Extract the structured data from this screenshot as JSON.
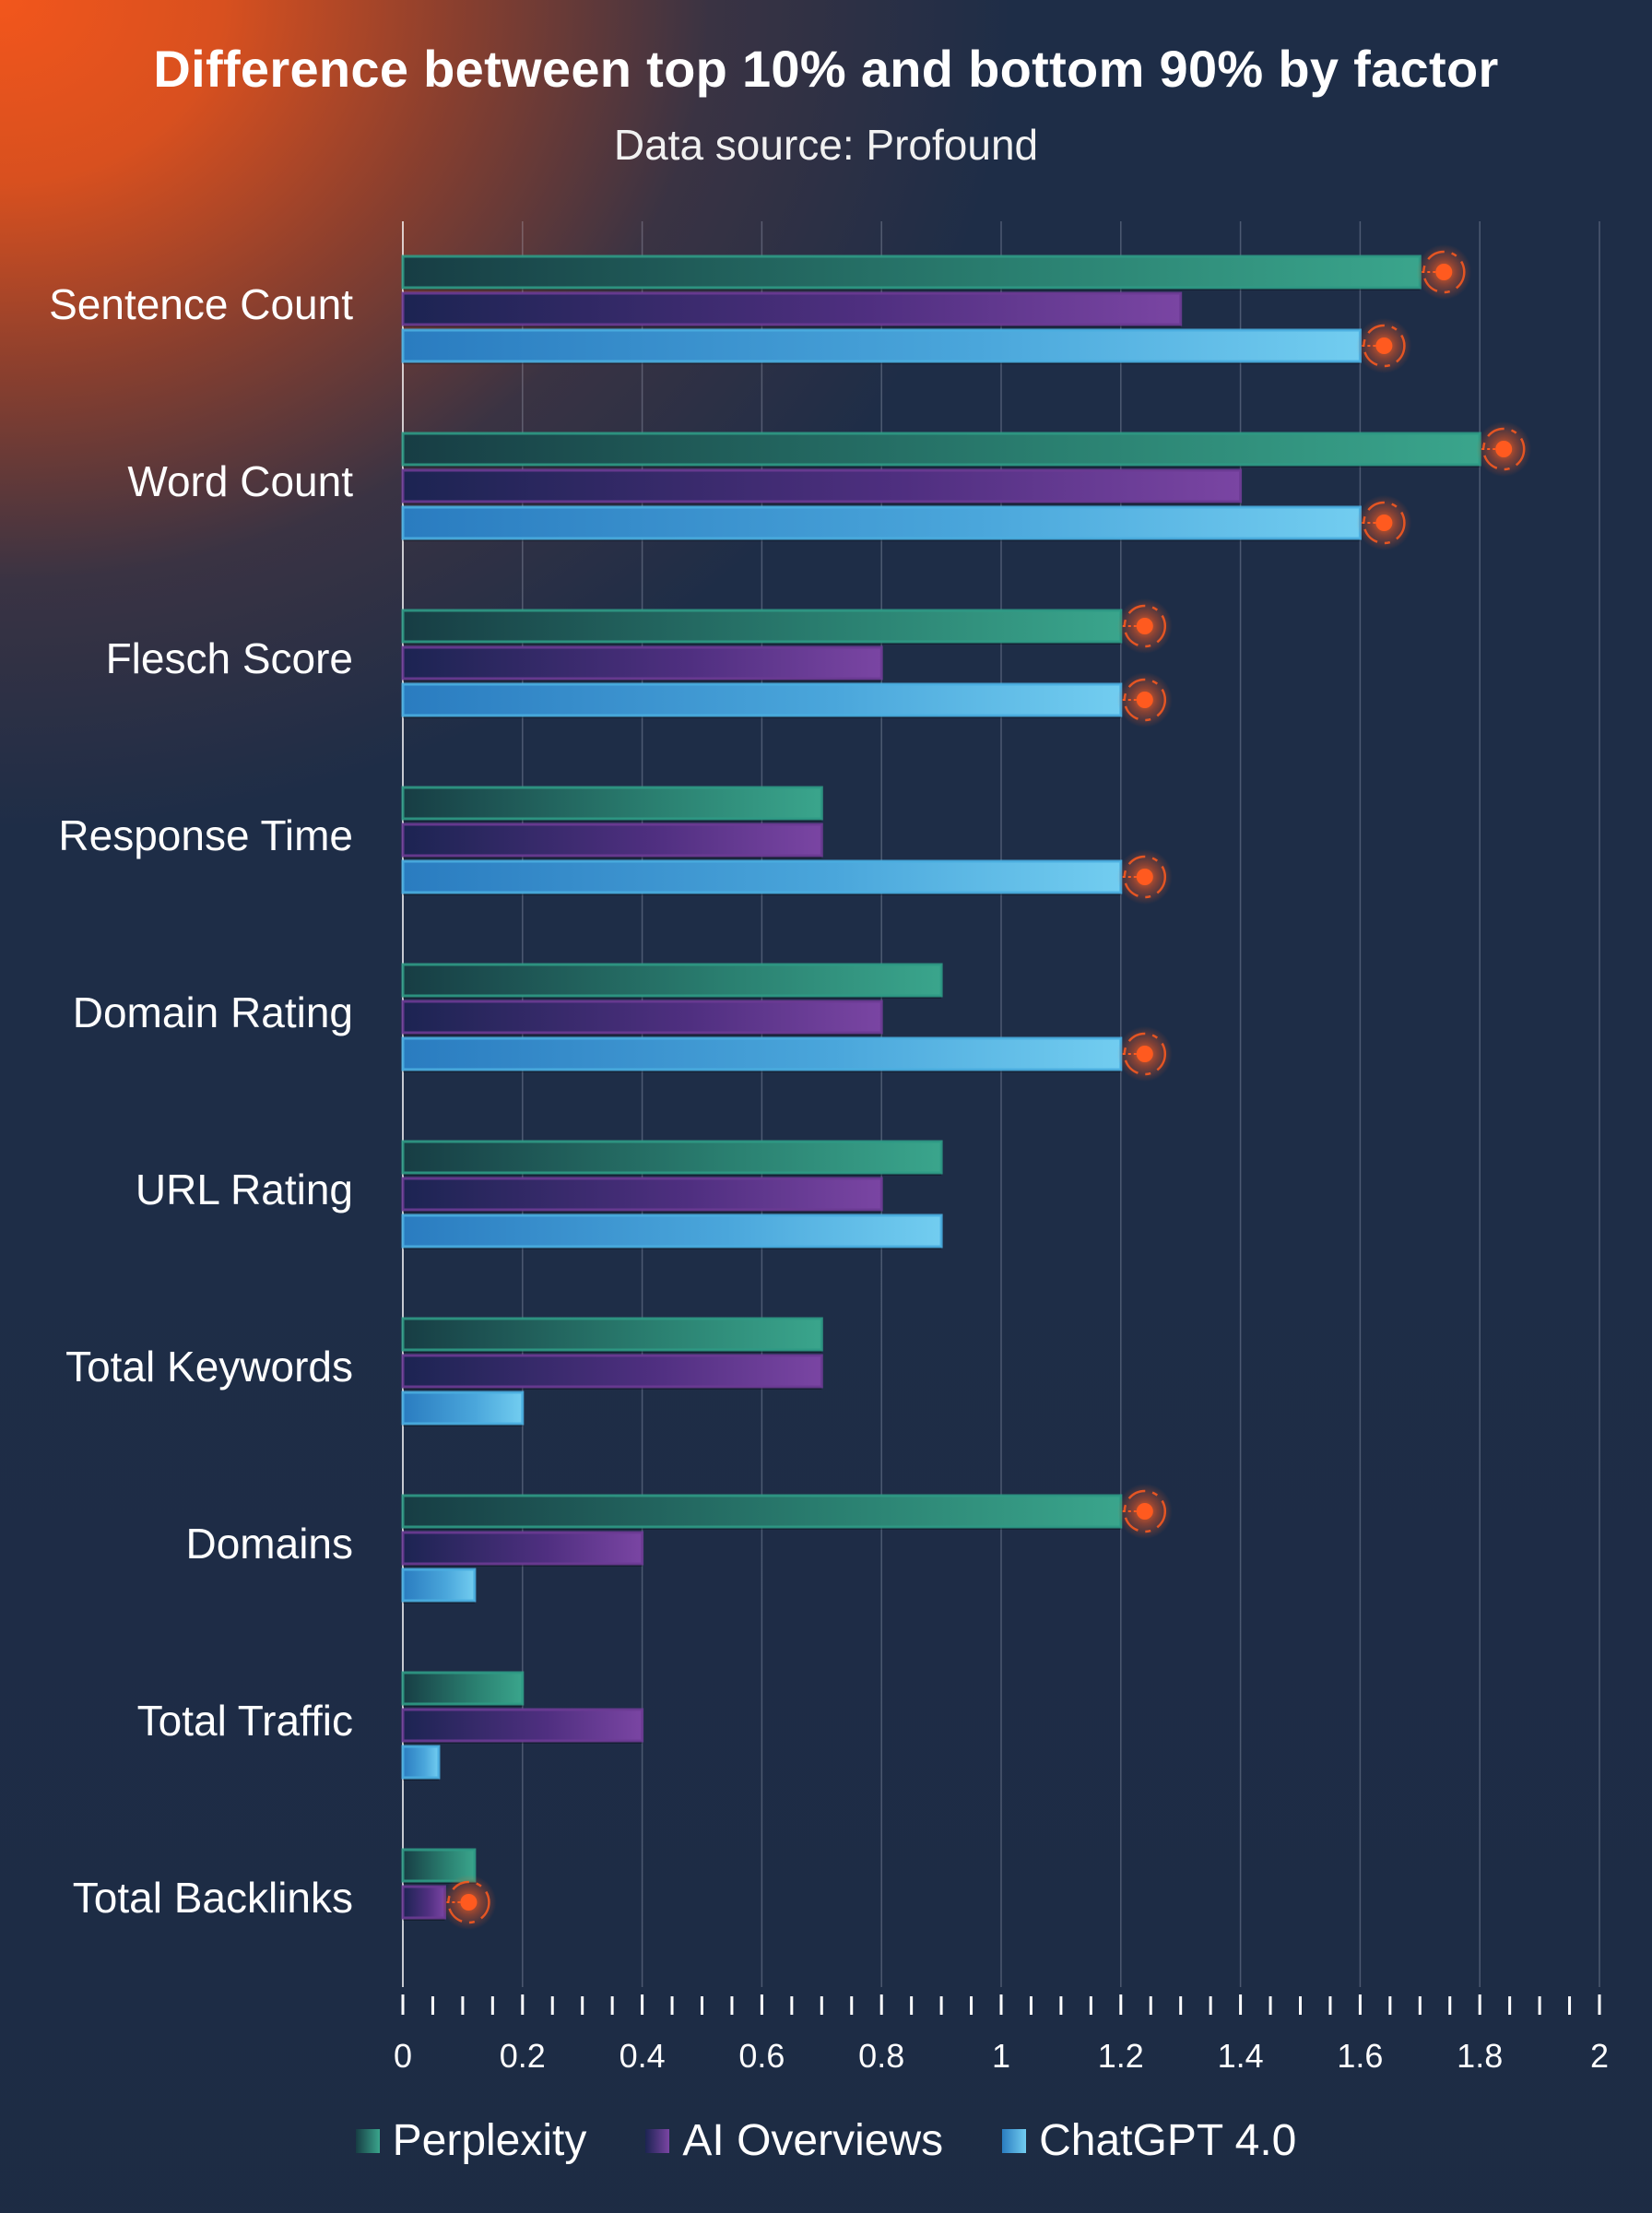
{
  "chart_data": {
    "type": "bar",
    "orientation": "horizontal",
    "title": "Difference between top 10% and bottom 90% by factor",
    "subtitle": "Data source: Profound",
    "categories": [
      "Sentence Count",
      "Word Count",
      "Flesch Score",
      "Response Time",
      "Domain Rating",
      "URL Rating",
      "Total Keywords",
      "Domains",
      "Total Traffic",
      "Total Backlinks"
    ],
    "series": [
      {
        "name": "Perplexity",
        "color": "#2f9a85",
        "values": [
          1.7,
          1.8,
          1.2,
          0.7,
          0.9,
          0.9,
          0.7,
          1.2,
          0.2,
          0.12
        ]
      },
      {
        "name": "AI Overviews",
        "color": "#6b3b93",
        "values": [
          1.3,
          1.4,
          0.8,
          0.7,
          0.8,
          0.8,
          0.7,
          0.4,
          0.4,
          0.07
        ]
      },
      {
        "name": "ChatGPT 4.0",
        "color": "#4aaee0",
        "values": [
          1.6,
          1.6,
          1.2,
          1.2,
          1.2,
          0.9,
          0.2,
          0.12,
          0.06,
          0
        ]
      }
    ],
    "xlim": [
      0,
      2
    ],
    "x_ticks": [
      "0",
      "0.2",
      "0.4",
      "0.6",
      "0.8",
      "1",
      "1.2",
      "1.4",
      "1.6",
      "1.8",
      "2"
    ],
    "highlight_color": "#ff5a1f",
    "highlights": [
      {
        "category": "Sentence Count",
        "series": "Perplexity"
      },
      {
        "category": "Sentence Count",
        "series": "ChatGPT 4.0"
      },
      {
        "category": "Word Count",
        "series": "Perplexity"
      },
      {
        "category": "Word Count",
        "series": "ChatGPT 4.0"
      },
      {
        "category": "Flesch Score",
        "series": "Perplexity"
      },
      {
        "category": "Flesch Score",
        "series": "ChatGPT 4.0"
      },
      {
        "category": "Response Time",
        "series": "ChatGPT 4.0"
      },
      {
        "category": "Domain Rating",
        "series": "ChatGPT 4.0"
      },
      {
        "category": "Domains",
        "series": "Perplexity"
      },
      {
        "category": "Total Backlinks",
        "series": "AI Overviews"
      }
    ],
    "grid": true,
    "legend": "bottom"
  }
}
